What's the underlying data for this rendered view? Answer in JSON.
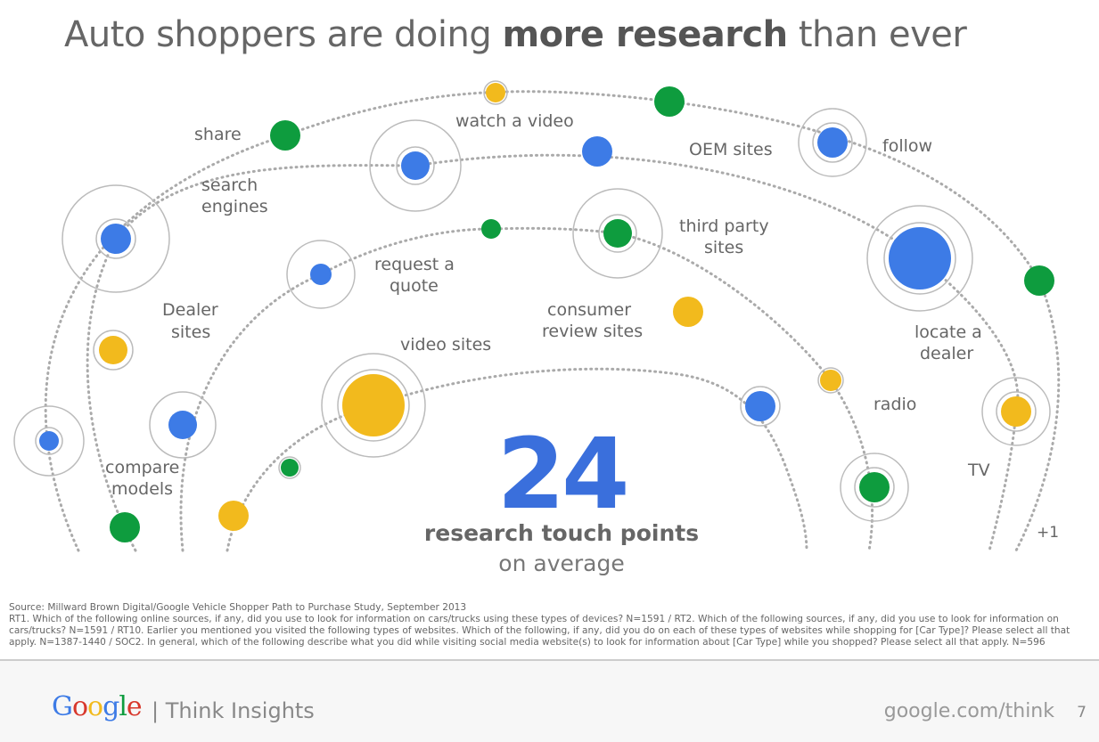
{
  "title": {
    "prefix": "Auto shoppers are doing ",
    "bold": "more research",
    "suffix": " than ever"
  },
  "colors": {
    "blue": "#3d7be6",
    "green": "#0e9c3e",
    "yellow": "#f2ba1d",
    "accent_number": "#3a6fdc"
  },
  "labels": {
    "share": "share",
    "search_engines_1": "search",
    "search_engines_2": "engines",
    "dealer_sites_1": "Dealer",
    "dealer_sites_2": "sites",
    "compare_models_1": "compare",
    "compare_models_2": "models",
    "request_quote_1": "request a",
    "request_quote_2": "quote",
    "watch_video": "watch a video",
    "oem_sites": "OEM sites",
    "follow": "follow",
    "third_party_1": "third party",
    "third_party_2": "sites",
    "consumer_review_1": "consumer",
    "consumer_review_2": "review sites",
    "video_sites": "video sites",
    "locate_dealer_1": "locate a",
    "locate_dealer_2": "dealer",
    "radio": "radio",
    "tv": "TV",
    "plus_one": "+1"
  },
  "stat": {
    "number": "24",
    "line1": "research touch points",
    "line2": "on average"
  },
  "source": {
    "line1": "Source: Millward Brown Digital/Google Vehicle Shopper Path to Purchase Study, September 2013",
    "body": "RT1. Which of the following online sources, if any, did you use to look for information on cars/trucks using these types of devices? N=1591 / RT2. Which of the following sources, if any, did you use to look for information on cars/trucks? N=1591 / RT10. Earlier you mentioned you visited the following types of websites. Which of the following, if any, did you do on each of these types of websites while shopping for [Car Type]? Please select all that apply. N=1387-1440 / SOC2. In general, which of the following describe what you did while visiting social media website(s) to look for information about [Car Type] while you shopped? Please select all that apply. N=596"
  },
  "footer": {
    "logo": "Google",
    "brand": "| Think Insights",
    "url": "google.com/think",
    "page": "7"
  }
}
